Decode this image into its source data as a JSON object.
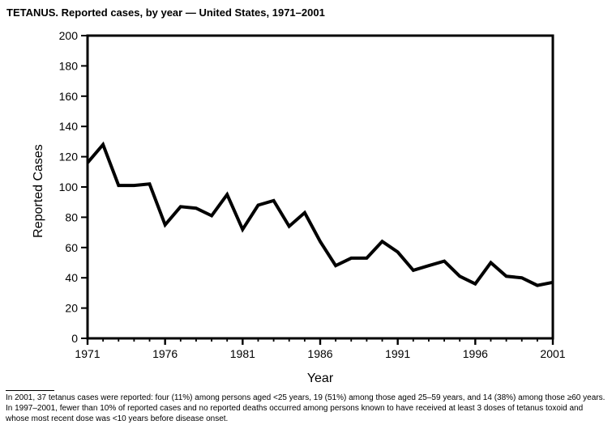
{
  "page": {
    "title": "TETANUS. Reported cases, by year — United States, 1971–2001"
  },
  "chart_data": {
    "type": "line",
    "title": "TETANUS. Reported cases, by year — United States, 1971–2001",
    "xlabel": "Year",
    "ylabel": "Reported Cases",
    "x": [
      1971,
      1972,
      1973,
      1974,
      1975,
      1976,
      1977,
      1978,
      1979,
      1980,
      1981,
      1982,
      1983,
      1984,
      1985,
      1986,
      1987,
      1988,
      1989,
      1990,
      1991,
      1992,
      1993,
      1994,
      1995,
      1996,
      1997,
      1998,
      1999,
      2000,
      2001
    ],
    "values": [
      116,
      128,
      101,
      101,
      102,
      75,
      87,
      86,
      81,
      95,
      72,
      88,
      91,
      74,
      83,
      64,
      48,
      53,
      53,
      64,
      57,
      45,
      48,
      51,
      41,
      36,
      50,
      41,
      40,
      35,
      37
    ],
    "xlim": [
      1971,
      2001
    ],
    "ylim": [
      0,
      200
    ],
    "ytick_step": 20,
    "xtick_labels": [
      1971,
      1976,
      1981,
      1986,
      1991,
      1996,
      2001
    ],
    "grid": false,
    "legend": null,
    "line_color": "#000000",
    "line_width": 4,
    "axis_color": "#000000",
    "background_color": "#ffffff"
  },
  "footnote": {
    "lines": [
      "In 2001, 37 tetanus cases were reported: four (11%) among persons aged <25 years, 19 (51%) among those aged 25–59 years, and 14 (38%) among those ≥60 years.",
      "In 1997–2001, fewer than 10% of reported cases and no reported deaths occurred among persons known to have received at least 3 doses of tetanus toxoid and",
      "whose most recent dose was <10 years before disease onset."
    ]
  }
}
